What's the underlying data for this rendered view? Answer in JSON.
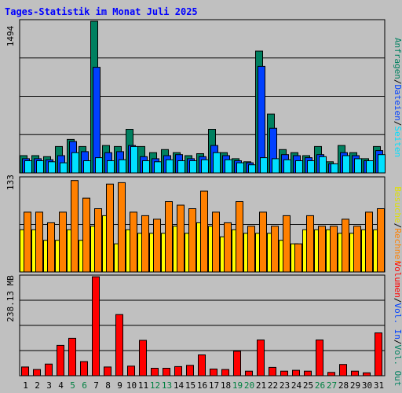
{
  "title": "Tages-Statistik im Monat Juli 2025",
  "colors": {
    "background": "#c0c0c0",
    "title": "#0000ff",
    "hits": "#008060",
    "files": "#0040ff",
    "pages": "#00e0ff",
    "visits": "#ffff00",
    "sites": "#ff8000",
    "kbytes": "#ff0000",
    "day_weekday": "#000000",
    "day_weekend": "#008040"
  },
  "labels": {
    "top_max": "1494",
    "mid_max": "133",
    "bottom_max": "238.13 MB",
    "right_top": [
      {
        "text": "Anfragen",
        "color": "#008060"
      },
      {
        "text": "/",
        "color": "#000000"
      },
      {
        "text": "Dateien",
        "color": "#0040ff"
      },
      {
        "text": "/",
        "color": "#000000"
      },
      {
        "text": "Seiten",
        "color": "#00e0ff"
      }
    ],
    "right_mid": [
      {
        "text": "Besuche",
        "color": "#e0e000"
      },
      {
        "text": "/",
        "color": "#000000"
      },
      {
        "text": "Rechner",
        "color": "#ff8000"
      }
    ],
    "right_bottom": [
      {
        "text": "Volumen",
        "color": "#ff0000"
      },
      {
        "text": "/",
        "color": "#000000"
      },
      {
        "text": "Vol. In",
        "color": "#0040ff"
      },
      {
        "text": "/",
        "color": "#000000"
      },
      {
        "text": "Vol. Out",
        "color": "#008060"
      }
    ]
  },
  "chart_data": {
    "type": "bar",
    "title": "Tages-Statistik im Monat Juli 2025",
    "days": [
      "1",
      "2",
      "3",
      "4",
      "5",
      "6",
      "7",
      "8",
      "9",
      "10",
      "11",
      "12",
      "13",
      "14",
      "15",
      "16",
      "17",
      "18",
      "19",
      "20",
      "21",
      "22",
      "23",
      "24",
      "25",
      "26",
      "27",
      "28",
      "29",
      "30",
      "31"
    ],
    "weekend_days": [
      "5",
      "6",
      "12",
      "13",
      "19",
      "20",
      "26",
      "27"
    ],
    "top": {
      "max_label": "1494",
      "ylim": [
        0,
        1494
      ],
      "series": [
        {
          "name": "Anfragen",
          "values": [
            170,
            170,
            160,
            260,
            330,
            260,
            1494,
            270,
            260,
            430,
            260,
            200,
            230,
            200,
            170,
            190,
            430,
            200,
            140,
            110,
            1200,
            580,
            230,
            200,
            170,
            260,
            110,
            270,
            200,
            140,
            260
          ]
        },
        {
          "name": "Dateien",
          "values": [
            140,
            140,
            130,
            170,
            310,
            210,
            1040,
            200,
            210,
            270,
            160,
            140,
            170,
            180,
            140,
            160,
            270,
            170,
            120,
            100,
            1050,
            440,
            180,
            170,
            150,
            180,
            90,
            200,
            170,
            120,
            220
          ]
        },
        {
          "name": "Seiten",
          "values": [
            120,
            120,
            110,
            100,
            200,
            120,
            150,
            120,
            130,
            260,
            120,
            110,
            130,
            120,
            120,
            130,
            200,
            130,
            100,
            80,
            150,
            140,
            130,
            120,
            120,
            160,
            90,
            170,
            140,
            120,
            180
          ]
        }
      ]
    },
    "middle": {
      "max_label": "133",
      "ylim": [
        0,
        133
      ],
      "series": [
        {
          "name": "Besuche",
          "values": [
            60,
            60,
            45,
            45,
            60,
            45,
            65,
            80,
            40,
            60,
            55,
            55,
            55,
            65,
            55,
            70,
            65,
            50,
            60,
            55,
            55,
            55,
            45,
            40,
            60,
            60,
            60,
            55,
            55,
            60,
            60
          ]
        },
        {
          "name": "Rechner",
          "values": [
            85,
            85,
            70,
            85,
            130,
            105,
            90,
            125,
            127,
            85,
            80,
            75,
            100,
            95,
            90,
            115,
            85,
            70,
            100,
            65,
            85,
            65,
            80,
            40,
            80,
            65,
            65,
            75,
            65,
            85,
            90
          ]
        }
      ]
    },
    "bottom": {
      "max_label": "238.13 MB",
      "ylim": [
        0,
        238.13
      ],
      "series": [
        {
          "name": "Volumen",
          "values": [
            21,
            15,
            28,
            73,
            90,
            34,
            238,
            21,
            147,
            23,
            85,
            18,
            18,
            22,
            25,
            50,
            16,
            15,
            59,
            11,
            86,
            20,
            11,
            13,
            11,
            86,
            8,
            27,
            11,
            7,
            103
          ]
        }
      ]
    }
  }
}
